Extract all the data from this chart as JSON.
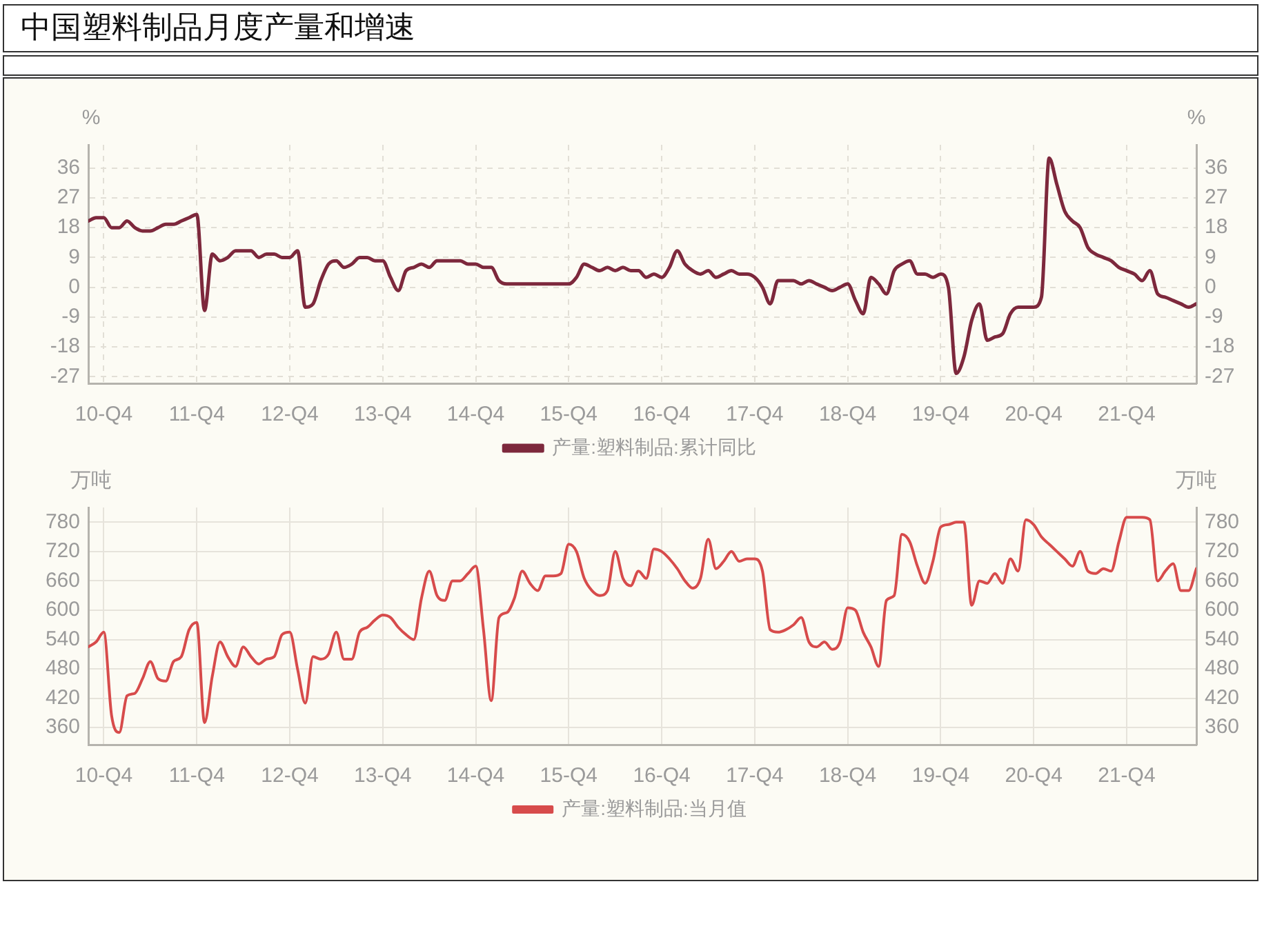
{
  "chart_data": [
    {
      "type": "line",
      "title": "中国塑料制品月度产量和增速",
      "ylabel": "%",
      "y2label": "%",
      "categories": [
        null,
        null,
        "10-Q4",
        null,
        null,
        null,
        null,
        null,
        null,
        null,
        null,
        null,
        null,
        null,
        "11-Q4",
        null,
        null,
        null,
        null,
        null,
        null,
        null,
        null,
        null,
        null,
        null,
        "12-Q4",
        null,
        null,
        null,
        null,
        null,
        null,
        null,
        null,
        null,
        null,
        null,
        "13-Q4",
        null,
        null,
        null,
        null,
        null,
        null,
        null,
        null,
        null,
        null,
        null,
        "14-Q4",
        null,
        null,
        null,
        null,
        null,
        null,
        null,
        null,
        null,
        null,
        null,
        "15-Q4",
        null,
        null,
        null,
        null,
        null,
        null,
        null,
        null,
        null,
        null,
        null,
        "16-Q4",
        null,
        null,
        null,
        null,
        null,
        null,
        null,
        null,
        null,
        null,
        null,
        "17-Q4",
        null,
        null,
        null,
        null,
        null,
        null,
        null,
        null,
        null,
        null,
        null,
        "18-Q4",
        null,
        null,
        null,
        null,
        null,
        null,
        null,
        null,
        null,
        null,
        null,
        "19-Q4",
        null,
        null,
        null,
        null,
        null,
        null,
        null,
        null,
        null,
        null,
        null,
        "20-Q4",
        null,
        null,
        null,
        null,
        null,
        null,
        null,
        null,
        null,
        null,
        null,
        "21-Q4",
        null,
        null,
        null,
        null,
        null,
        null,
        null,
        null,
        null
      ],
      "series": [
        {
          "name": "产量:塑料制品:累计同比",
          "color": "#7d283c",
          "values": [
            20,
            21,
            21,
            18,
            18,
            20,
            18,
            17,
            17,
            18,
            19,
            19,
            20,
            21,
            22,
            -7,
            10,
            8,
            9,
            11,
            11,
            11,
            9,
            10,
            10,
            9,
            9,
            11,
            -6,
            -5,
            2,
            7,
            8,
            6,
            7,
            9,
            9,
            8,
            8,
            3,
            -1,
            5,
            6,
            7,
            6,
            8,
            8,
            8,
            8,
            7,
            7,
            6,
            6,
            2,
            1,
            1,
            1,
            1,
            1,
            1,
            1,
            1,
            1,
            3,
            7,
            6,
            5,
            6,
            5,
            6,
            5,
            5,
            3,
            4,
            3,
            6,
            11,
            7,
            5,
            4,
            5,
            3,
            4,
            5,
            4,
            4,
            3,
            0,
            -5,
            2,
            2,
            2,
            1,
            2,
            1,
            0,
            -1,
            0,
            1,
            -4,
            -8,
            3,
            1,
            -2,
            5,
            7,
            8,
            4,
            4,
            3,
            4,
            0,
            -26,
            -21,
            -10,
            -5,
            -16,
            -15,
            -14,
            -8,
            -6,
            -6,
            -6,
            -3,
            39,
            31,
            23,
            20,
            18,
            12,
            10,
            9,
            8,
            6,
            5,
            4,
            2,
            5,
            -2,
            -3,
            -4,
            -5,
            -6,
            -5
          ]
        }
      ],
      "ylim": [
        -29,
        43
      ],
      "yticks": [
        -27,
        -18,
        -9,
        0,
        9,
        18,
        27,
        36
      ],
      "y2lim": [
        -29,
        43
      ],
      "y2ticks": [
        -27,
        -18,
        -9,
        0,
        9,
        18,
        27,
        36
      ],
      "grid": true,
      "legend": "bottom"
    },
    {
      "type": "line",
      "ylabel": "万吨",
      "y2label": "万吨",
      "categories": [
        null,
        null,
        "10-Q4",
        null,
        null,
        null,
        null,
        null,
        null,
        null,
        null,
        null,
        null,
        null,
        "11-Q4",
        null,
        null,
        null,
        null,
        null,
        null,
        null,
        null,
        null,
        null,
        null,
        "12-Q4",
        null,
        null,
        null,
        null,
        null,
        null,
        null,
        null,
        null,
        null,
        null,
        "13-Q4",
        null,
        null,
        null,
        null,
        null,
        null,
        null,
        null,
        null,
        null,
        null,
        "14-Q4",
        null,
        null,
        null,
        null,
        null,
        null,
        null,
        null,
        null,
        null,
        null,
        "15-Q4",
        null,
        null,
        null,
        null,
        null,
        null,
        null,
        null,
        null,
        null,
        null,
        "16-Q4",
        null,
        null,
        null,
        null,
        null,
        null,
        null,
        null,
        null,
        null,
        null,
        "17-Q4",
        null,
        null,
        null,
        null,
        null,
        null,
        null,
        null,
        null,
        null,
        null,
        "18-Q4",
        null,
        null,
        null,
        null,
        null,
        null,
        null,
        null,
        null,
        null,
        null,
        "19-Q4",
        null,
        null,
        null,
        null,
        null,
        null,
        null,
        null,
        null,
        null,
        null,
        "20-Q4",
        null,
        null,
        null,
        null,
        null,
        null,
        null,
        null,
        null,
        null,
        null,
        "21-Q4",
        null,
        null,
        null,
        null,
        null,
        null,
        null,
        null,
        null
      ],
      "series": [
        {
          "name": "产量:塑料制品:当月值",
          "color": "#d74b4b",
          "values": [
            525,
            535,
            555,
            385,
            350,
            425,
            430,
            460,
            495,
            460,
            455,
            495,
            505,
            560,
            575,
            370,
            465,
            535,
            505,
            485,
            525,
            505,
            490,
            500,
            505,
            550,
            555,
            480,
            410,
            505,
            500,
            510,
            555,
            500,
            500,
            555,
            565,
            580,
            590,
            585,
            565,
            550,
            540,
            625,
            680,
            630,
            620,
            660,
            660,
            675,
            690,
            560,
            415,
            585,
            595,
            625,
            680,
            655,
            640,
            670,
            670,
            675,
            735,
            720,
            665,
            640,
            630,
            640,
            720,
            665,
            650,
            680,
            665,
            725,
            720,
            705,
            685,
            660,
            645,
            665,
            745,
            685,
            700,
            720,
            700,
            705,
            705,
            680,
            560,
            555,
            560,
            570,
            585,
            535,
            525,
            535,
            520,
            535,
            605,
            600,
            555,
            525,
            485,
            620,
            630,
            755,
            740,
            690,
            655,
            700,
            770,
            775,
            780,
            780,
            610,
            660,
            655,
            675,
            655,
            705,
            680,
            785,
            775,
            750,
            735,
            720,
            705,
            690,
            720,
            680,
            675,
            685,
            680,
            740,
            790,
            790,
            790,
            785,
            660,
            680,
            695,
            640,
            640,
            685
          ]
        }
      ],
      "ylim": [
        325,
        810
      ],
      "yticks": [
        360,
        420,
        480,
        540,
        600,
        660,
        720,
        780
      ],
      "y2lim": [
        325,
        810
      ],
      "y2ticks": [
        360,
        420,
        480,
        540,
        600,
        660,
        720,
        780
      ],
      "grid": true,
      "legend": "bottom"
    }
  ]
}
